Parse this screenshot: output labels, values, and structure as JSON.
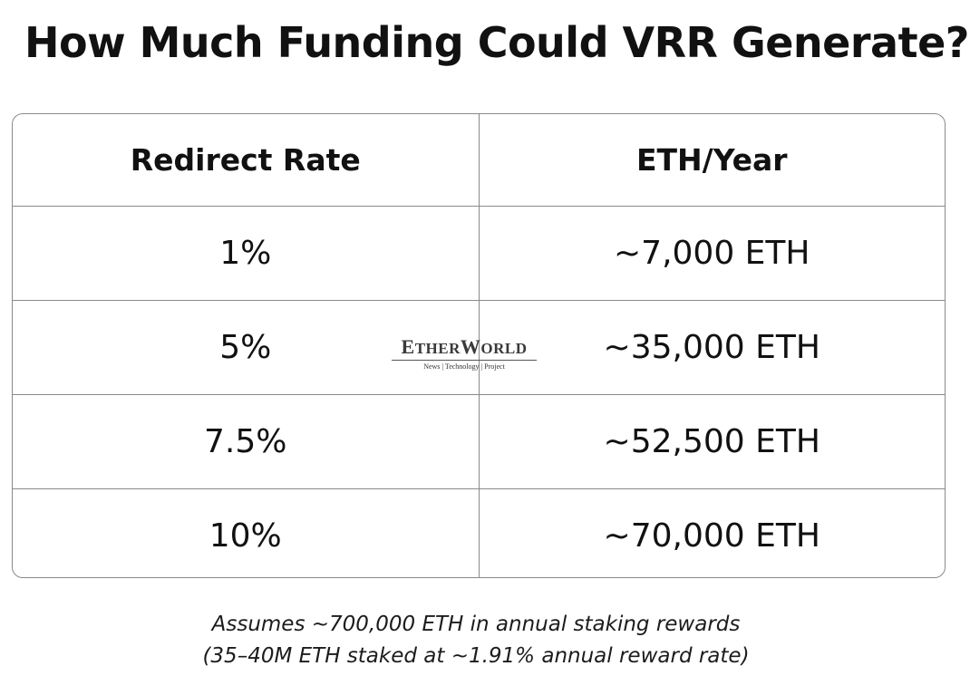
{
  "title": "How Much Funding Could VRR Generate?",
  "table": {
    "headers": [
      "Redirect Rate",
      "ETH/Year"
    ],
    "rows": [
      [
        "1%",
        "~7,000 ETH"
      ],
      [
        "5%",
        "~35,000 ETH"
      ],
      [
        "7.5%",
        "~52,500 ETH"
      ],
      [
        "10%",
        "~70,000 ETH"
      ]
    ]
  },
  "watermark": {
    "name": "EtherWorld",
    "tagline": "News | Technology | Project"
  },
  "notes": {
    "line1": "Assumes ~700,000 ETH in annual staking rewards",
    "line2": "(35–40M ETH staked at ~1.91% annual reward rate)"
  }
}
